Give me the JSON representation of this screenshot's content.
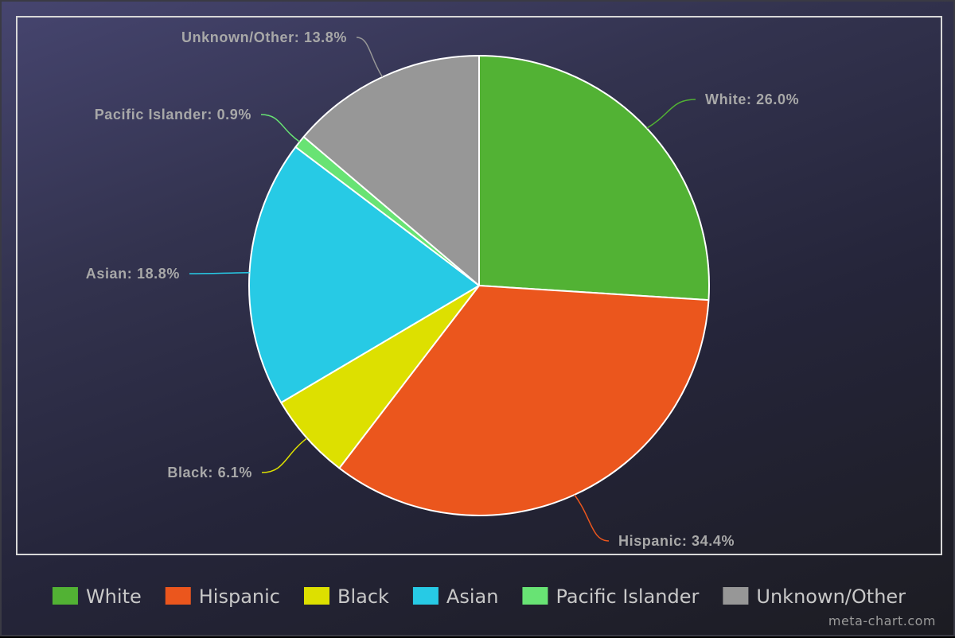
{
  "chart_data": {
    "type": "pie",
    "categories": [
      "White",
      "Hispanic",
      "Black",
      "Asian",
      "Pacific Islander",
      "Unknown/Other"
    ],
    "values": [
      26.0,
      34.4,
      6.1,
      18.8,
      0.9,
      13.8
    ],
    "data_labels": [
      "White: 26.0%",
      "Hispanic: 34.4%",
      "Black: 6.1%",
      "Asian: 18.8%",
      "Pacific Islander: 0.9%",
      "Unknown/Other: 13.8%"
    ],
    "colors": [
      "#52b234",
      "#eb561d",
      "#dde000",
      "#27cae5",
      "#68e374",
      "#979797"
    ],
    "start_angle": "12 o'clock",
    "direction": "clockwise",
    "legend_position": "bottom",
    "title": ""
  },
  "credit": "meta-chart.com"
}
